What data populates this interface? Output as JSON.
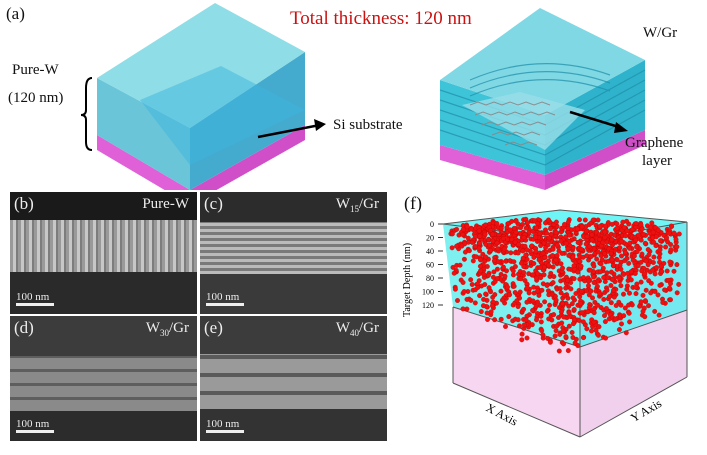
{
  "panel_a": {
    "label": "(a)",
    "title": "Total thickness: 120 nm",
    "pure_w": "Pure-W",
    "pure_w_thickness": "(120 nm)",
    "si_substrate": "Si substrate",
    "w_gr": "W/Gr",
    "graphene": "Graphene",
    "graphene2": "layer"
  },
  "sem": [
    {
      "label": "(b)",
      "name": "Pure-W",
      "scale": "100 nm"
    },
    {
      "label": "(c)",
      "name_w": "W",
      "name_sub": "15",
      "name_rest": "/Gr",
      "scale": "100 nm"
    },
    {
      "label": "(d)",
      "name_w": "W",
      "name_sub": "30",
      "name_rest": "/Gr",
      "scale": "100 nm"
    },
    {
      "label": "(e)",
      "name_w": "W",
      "name_sub": "40",
      "name_rest": "/Gr",
      "scale": "100 nm"
    }
  ],
  "panel_f": {
    "label": "(f)",
    "ylabel": "Target Depth (nm)",
    "xaxis": "X Axis",
    "yaxis": "Y Axis",
    "ticks": [
      "0",
      "20",
      "40",
      "60",
      "80",
      "100",
      "120"
    ]
  },
  "colors": {
    "w": "#4fd0e0",
    "si": "#e060d8",
    "title": "#cc1111",
    "ion": "#ee1111"
  }
}
